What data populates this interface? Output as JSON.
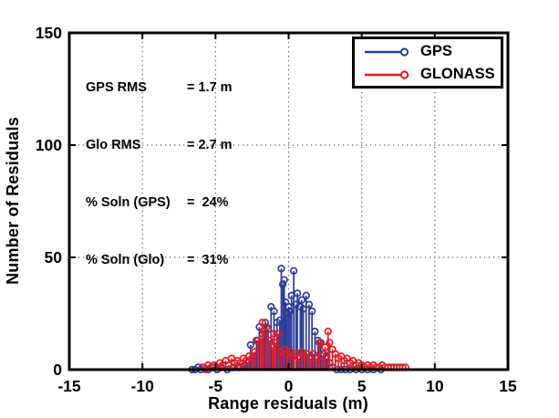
{
  "figure": {
    "background": "#ffffff"
  },
  "stats": {
    "rows": [
      {
        "label": "GPS RMS",
        "value": "= 1.7 m"
      },
      {
        "label": "Glo RMS",
        "value": "= 2.7 m"
      },
      {
        "label": "% Soln (GPS)",
        "value": "=  24%"
      },
      {
        "label": "% Soln (Glo)",
        "value": "=  31%"
      }
    ]
  },
  "legend": {
    "items": [
      {
        "label": "GPS",
        "color": "#2B3C9B"
      },
      {
        "label": "GLONASS",
        "color": "#E8191F"
      }
    ]
  },
  "chart_data": {
    "type": "stem",
    "title": "",
    "xlabel": "Range residuals (m)",
    "ylabel": "Number of Residuals",
    "xlim": [
      -15,
      15
    ],
    "ylim": [
      0,
      150
    ],
    "xticks": [
      -15,
      -10,
      -5,
      0,
      5,
      10,
      15
    ],
    "yticks": [
      0,
      50,
      100,
      150
    ],
    "grid_x": [
      -10,
      -5,
      0,
      5,
      10
    ],
    "grid_y": [
      50,
      100
    ],
    "grid_on": true,
    "legend_position": "top-right",
    "frame_color": "#000000",
    "grid_color": "#555555",
    "series": [
      {
        "name": "GPS",
        "color": "#2B3C9B",
        "points": [
          [
            -6.6,
            0
          ],
          [
            -6.4,
            0
          ],
          [
            -6.2,
            1
          ],
          [
            -6.0,
            0
          ],
          [
            -5.8,
            1
          ],
          [
            -5.5,
            0
          ],
          [
            -5.2,
            1
          ],
          [
            -4.9,
            0
          ],
          [
            -4.6,
            1
          ],
          [
            -4.2,
            0
          ],
          [
            -3.8,
            1
          ],
          [
            -3.4,
            1
          ],
          [
            -3.0,
            2
          ],
          [
            -2.8,
            3
          ],
          [
            -2.6,
            11
          ],
          [
            -2.4,
            6
          ],
          [
            -2.2,
            13
          ],
          [
            -2.0,
            19
          ],
          [
            -1.8,
            16
          ],
          [
            -1.6,
            21
          ],
          [
            -1.4,
            18
          ],
          [
            -1.2,
            28
          ],
          [
            -1.0,
            26
          ],
          [
            -0.8,
            21
          ],
          [
            -0.6,
            22
          ],
          [
            -0.5,
            45
          ],
          [
            -0.4,
            38
          ],
          [
            -0.3,
            40
          ],
          [
            -0.2,
            30
          ],
          [
            -0.1,
            25
          ],
          [
            0.0,
            28
          ],
          [
            0.1,
            26
          ],
          [
            0.2,
            33
          ],
          [
            0.35,
            44
          ],
          [
            0.5,
            29
          ],
          [
            0.6,
            34
          ],
          [
            0.8,
            28
          ],
          [
            0.9,
            31
          ],
          [
            1.0,
            27
          ],
          [
            1.2,
            33
          ],
          [
            1.4,
            29
          ],
          [
            1.6,
            26
          ],
          [
            1.8,
            17
          ],
          [
            2.0,
            13
          ],
          [
            2.2,
            12
          ],
          [
            2.4,
            7
          ],
          [
            2.6,
            5
          ],
          [
            2.8,
            3
          ],
          [
            3.0,
            1
          ],
          [
            3.3,
            0
          ],
          [
            3.6,
            0
          ],
          [
            3.9,
            0
          ],
          [
            4.2,
            0
          ],
          [
            4.6,
            0
          ],
          [
            5.0,
            0
          ],
          [
            5.4,
            0
          ],
          [
            5.8,
            0
          ],
          [
            6.3,
            0
          ]
        ]
      },
      {
        "name": "GLONASS",
        "color": "#E8191F",
        "points": [
          [
            -5.9,
            1
          ],
          [
            -5.7,
            0
          ],
          [
            -5.5,
            2
          ],
          [
            -5.3,
            1
          ],
          [
            -5.1,
            2
          ],
          [
            -4.9,
            1
          ],
          [
            -4.7,
            3
          ],
          [
            -4.5,
            2
          ],
          [
            -4.3,
            4
          ],
          [
            -4.1,
            2
          ],
          [
            -3.9,
            5
          ],
          [
            -3.7,
            3
          ],
          [
            -3.5,
            4
          ],
          [
            -3.3,
            3
          ],
          [
            -3.1,
            5
          ],
          [
            -2.9,
            4
          ],
          [
            -2.7,
            6
          ],
          [
            -2.5,
            5
          ],
          [
            -2.3,
            8
          ],
          [
            -2.1,
            13
          ],
          [
            -1.9,
            12
          ],
          [
            -1.8,
            21
          ],
          [
            -1.7,
            17
          ],
          [
            -1.5,
            19
          ],
          [
            -1.3,
            13
          ],
          [
            -1.1,
            10
          ],
          [
            -1.0,
            16
          ],
          [
            -0.9,
            12
          ],
          [
            -0.7,
            16
          ],
          [
            -0.5,
            8
          ],
          [
            -0.3,
            9
          ],
          [
            -0.1,
            7
          ],
          [
            0.1,
            8
          ],
          [
            0.3,
            6
          ],
          [
            0.5,
            7
          ],
          [
            0.7,
            5
          ],
          [
            0.9,
            8
          ],
          [
            1.1,
            6
          ],
          [
            1.3,
            7
          ],
          [
            1.5,
            5
          ],
          [
            1.7,
            7
          ],
          [
            1.9,
            5
          ],
          [
            2.1,
            12
          ],
          [
            2.3,
            6
          ],
          [
            2.5,
            10
          ],
          [
            2.7,
            17
          ],
          [
            2.8,
            12
          ],
          [
            3.0,
            9
          ],
          [
            3.2,
            7
          ],
          [
            3.4,
            5
          ],
          [
            3.6,
            6
          ],
          [
            3.8,
            4
          ],
          [
            4.0,
            5
          ],
          [
            4.2,
            3
          ],
          [
            4.4,
            4
          ],
          [
            4.6,
            2
          ],
          [
            4.8,
            3
          ],
          [
            5.0,
            2
          ],
          [
            5.2,
            1
          ],
          [
            5.4,
            2
          ],
          [
            5.6,
            1
          ],
          [
            5.8,
            2
          ],
          [
            6.0,
            1
          ],
          [
            6.2,
            1
          ],
          [
            6.4,
            2
          ],
          [
            6.6,
            1
          ],
          [
            6.8,
            1
          ],
          [
            7.0,
            1
          ],
          [
            7.2,
            1
          ],
          [
            7.4,
            1
          ],
          [
            7.6,
            1
          ],
          [
            7.8,
            1
          ],
          [
            8.0,
            1
          ]
        ]
      }
    ]
  }
}
